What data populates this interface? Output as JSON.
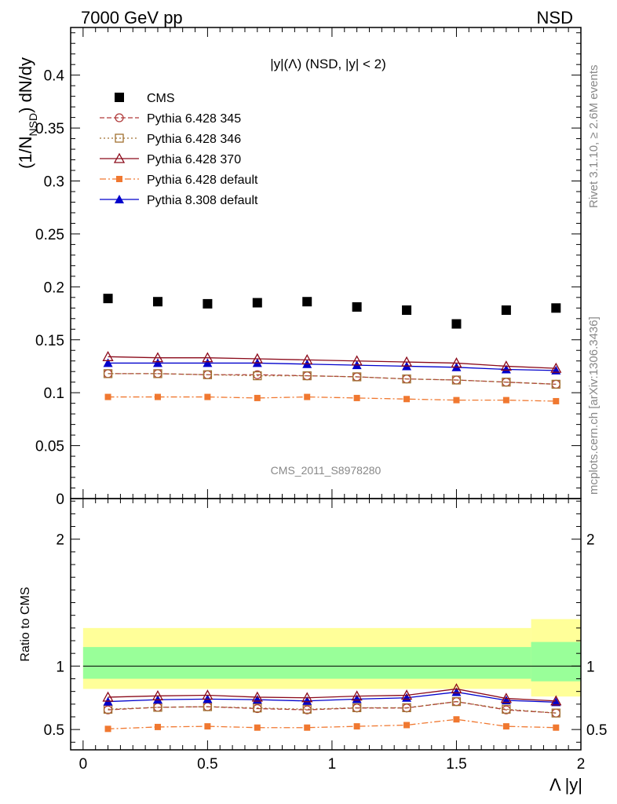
{
  "header": {
    "left": "7000 GeV pp",
    "right": "NSD"
  },
  "side": {
    "rivet": "Rivet 3.1.10, ≥ 2.6M events",
    "mcplots": "mcplots.cern.ch [arXiv:1306.3436]"
  },
  "plot": {
    "title": "|y|(Λ) (NSD, |y| < 2)",
    "watermark": "CMS_2011_S8978280",
    "ylabel": "(1/N_NSD) dN/dy",
    "ylabel_main": "(1/N",
    "ylabel_sub": "NSD",
    "ylabel_end": ") dN/dy",
    "ratio_ylabel": "Ratio to CMS",
    "xlabel": "Λ |y|"
  },
  "chart_data": [
    {
      "type": "scatter",
      "panel": "main",
      "x": [
        0.1,
        0.3,
        0.5,
        0.7,
        0.9,
        1.1,
        1.3,
        1.5,
        1.7,
        1.9
      ],
      "xlim": [
        -0.05,
        2.0
      ],
      "ylim": [
        0,
        0.445
      ],
      "yticks": [
        0,
        0.05,
        0.1,
        0.15,
        0.2,
        0.25,
        0.3,
        0.35,
        0.4
      ],
      "ytick_labels": [
        "0",
        "0.05",
        "0.1",
        "0.15",
        "0.2",
        "0.25",
        "0.3",
        "0.35",
        "0.4"
      ],
      "legend_position": "top-left",
      "series": [
        {
          "key": "cms",
          "name": "CMS",
          "color": "#000000",
          "marker": "square",
          "line": "none",
          "values": [
            0.189,
            0.186,
            0.184,
            0.185,
            0.186,
            0.181,
            0.178,
            0.165,
            0.178,
            0.18
          ]
        },
        {
          "key": "p345",
          "name": "Pythia 6.428 345",
          "color": "#b03a3a",
          "marker": "open-circle",
          "line": "dashed",
          "values": [
            0.118,
            0.118,
            0.117,
            0.117,
            0.116,
            0.115,
            0.113,
            0.112,
            0.11,
            0.108
          ]
        },
        {
          "key": "p346",
          "name": "Pythia 6.428 346",
          "color": "#a07030",
          "marker": "open-square",
          "line": "dotted",
          "values": [
            0.118,
            0.118,
            0.117,
            0.116,
            0.116,
            0.115,
            0.113,
            0.112,
            0.11,
            0.108
          ]
        },
        {
          "key": "p370",
          "name": "Pythia 6.428 370",
          "color": "#8b0a1a",
          "marker": "open-triangle",
          "line": "solid",
          "values": [
            0.134,
            0.133,
            0.133,
            0.132,
            0.131,
            0.13,
            0.129,
            0.128,
            0.125,
            0.123
          ]
        },
        {
          "key": "pdef",
          "name": "Pythia 6.428 default",
          "color": "#f07830",
          "marker": "filled-square",
          "line": "dashdot",
          "values": [
            0.096,
            0.096,
            0.096,
            0.095,
            0.096,
            0.095,
            0.094,
            0.093,
            0.093,
            0.092
          ]
        },
        {
          "key": "p8",
          "name": "Pythia 8.308 default",
          "color": "#0000cc",
          "marker": "filled-triangle",
          "line": "solid",
          "values": [
            0.128,
            0.128,
            0.128,
            0.128,
            0.127,
            0.126,
            0.125,
            0.124,
            0.122,
            0.121
          ]
        }
      ]
    },
    {
      "type": "line",
      "panel": "ratio",
      "x": [
        0.1,
        0.3,
        0.5,
        0.7,
        0.9,
        1.1,
        1.3,
        1.5,
        1.7,
        1.9
      ],
      "xlim": [
        -0.05,
        2.0
      ],
      "ylim": [
        0.34,
        2.32
      ],
      "yticks": [
        0.5,
        1,
        2
      ],
      "ytick_labels": [
        "0.5",
        "1",
        "2"
      ],
      "xticks": [
        0,
        0.5,
        1,
        1.5,
        2
      ],
      "xtick_labels": [
        "0",
        "0.5",
        "1",
        "1.5",
        "2"
      ],
      "reference_line": 1,
      "bands": [
        {
          "x_from": 0.0,
          "x_to": 1.8,
          "yellow": [
            0.82,
            1.3
          ],
          "green": [
            0.9,
            1.15
          ]
        },
        {
          "x_from": 1.8,
          "x_to": 2.0,
          "yellow": [
            0.76,
            1.37
          ],
          "green": [
            0.88,
            1.19
          ]
        }
      ],
      "series": [
        {
          "key": "p345",
          "values": [
            0.655,
            0.675,
            0.68,
            0.665,
            0.655,
            0.67,
            0.67,
            0.72,
            0.655,
            0.63
          ]
        },
        {
          "key": "p346",
          "values": [
            0.66,
            0.675,
            0.68,
            0.67,
            0.66,
            0.672,
            0.672,
            0.72,
            0.66,
            0.63
          ]
        },
        {
          "key": "p370",
          "values": [
            0.755,
            0.765,
            0.77,
            0.755,
            0.75,
            0.763,
            0.77,
            0.82,
            0.745,
            0.725
          ]
        },
        {
          "key": "pdef",
          "values": [
            0.505,
            0.52,
            0.525,
            0.515,
            0.515,
            0.525,
            0.535,
            0.58,
            0.525,
            0.515
          ]
        },
        {
          "key": "p8",
          "values": [
            0.72,
            0.735,
            0.74,
            0.735,
            0.725,
            0.74,
            0.75,
            0.795,
            0.73,
            0.715
          ]
        }
      ]
    }
  ]
}
